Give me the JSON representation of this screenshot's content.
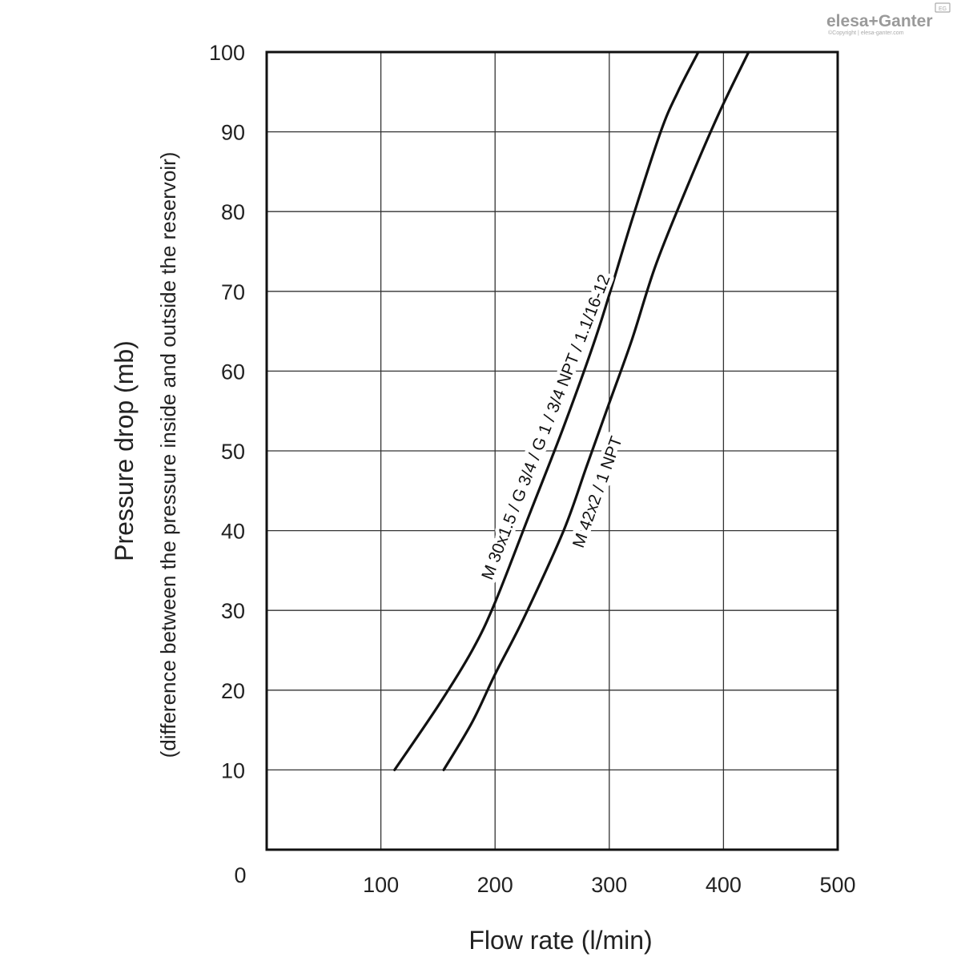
{
  "brand": {
    "logo_text": "elesa+Ganter",
    "badge": "EG",
    "copyright": "©Copyright | elesa-ganter.com"
  },
  "chart_data": {
    "type": "line",
    "xlabel": "Flow rate (l/min)",
    "ylabel": "Pressure drop (mb)",
    "ylabel_sub": "(difference between the pressure inside and outside the reservoir)",
    "xlim": [
      0,
      500
    ],
    "ylim": [
      0,
      100
    ],
    "x_ticks": [
      0,
      100,
      200,
      300,
      400,
      500
    ],
    "y_ticks": [
      10,
      20,
      30,
      40,
      50,
      60,
      70,
      80,
      90,
      100
    ],
    "origin_label": "0",
    "grid": true,
    "series": [
      {
        "name": "M 30x1.5 / G 3/4 / G 1 / 3/4 NPT / 1.1/16-12",
        "points": [
          [
            112,
            10
          ],
          [
            150,
            18
          ],
          [
            180,
            25
          ],
          [
            200,
            31
          ],
          [
            230,
            42
          ],
          [
            260,
            53
          ],
          [
            290,
            65
          ],
          [
            320,
            79
          ],
          [
            345,
            90
          ],
          [
            360,
            95
          ],
          [
            378,
            100
          ]
        ]
      },
      {
        "name": "M 42x2 / 1 NPT",
        "points": [
          [
            155,
            10
          ],
          [
            180,
            16
          ],
          [
            200,
            22
          ],
          [
            225,
            29
          ],
          [
            260,
            40
          ],
          [
            280,
            48
          ],
          [
            300,
            56
          ],
          [
            320,
            64
          ],
          [
            340,
            73
          ],
          [
            365,
            82
          ],
          [
            395,
            92
          ],
          [
            422,
            100
          ]
        ]
      }
    ],
    "colors": {
      "line": "#111111",
      "grid": "#333333",
      "frame": "#111111"
    }
  }
}
